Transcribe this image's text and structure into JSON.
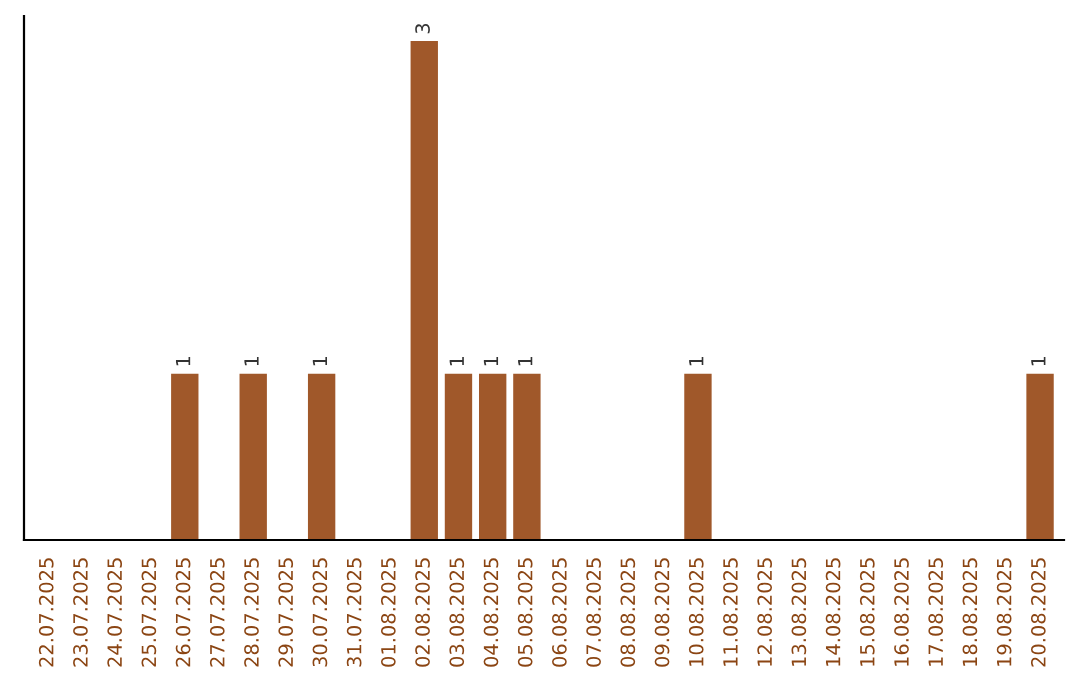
{
  "chart_data": {
    "type": "bar",
    "categories": [
      "22.07.2025",
      "23.07.2025",
      "24.07.2025",
      "25.07.2025",
      "26.07.2025",
      "27.07.2025",
      "28.07.2025",
      "29.07.2025",
      "30.07.2025",
      "31.07.2025",
      "01.08.2025",
      "02.08.2025",
      "03.08.2025",
      "04.08.2025",
      "05.08.2025",
      "06.08.2025",
      "07.08.2025",
      "08.08.2025",
      "09.08.2025",
      "10.08.2025",
      "11.08.2025",
      "12.08.2025",
      "13.08.2025",
      "14.08.2025",
      "15.08.2025",
      "16.08.2025",
      "17.08.2025",
      "18.08.2025",
      "19.08.2025",
      "20.08.2025"
    ],
    "values": [
      0,
      0,
      0,
      0,
      1,
      0,
      1,
      0,
      1,
      0,
      0,
      3,
      1,
      1,
      1,
      0,
      0,
      0,
      0,
      1,
      0,
      0,
      0,
      0,
      0,
      0,
      0,
      0,
      0,
      1
    ],
    "color": "#a0582a",
    "value_labels": [
      null,
      null,
      null,
      null,
      "1",
      null,
      "1",
      null,
      "1",
      null,
      null,
      "3",
      "1",
      "1",
      "1",
      null,
      null,
      null,
      null,
      "1",
      null,
      null,
      null,
      null,
      null,
      null,
      null,
      null,
      null,
      "1"
    ],
    "grid": false,
    "legend": false
  }
}
